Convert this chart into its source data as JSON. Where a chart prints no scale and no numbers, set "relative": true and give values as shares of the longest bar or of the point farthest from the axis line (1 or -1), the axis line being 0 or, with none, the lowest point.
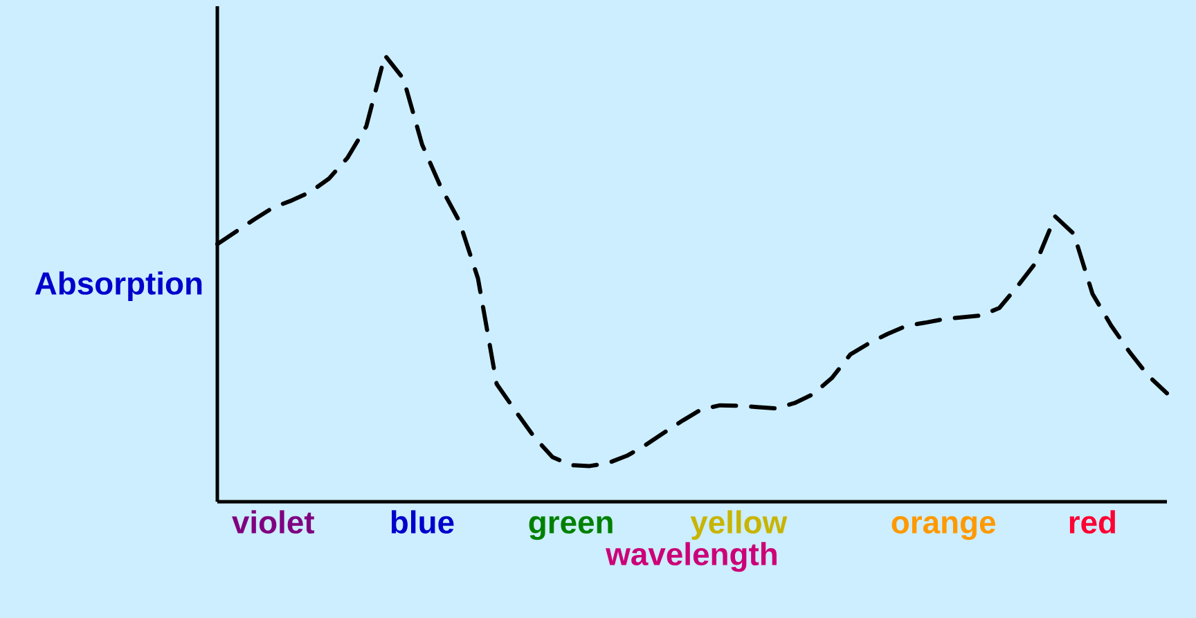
{
  "chart_data": {
    "type": "line",
    "relative": true,
    "ylabel": "Absorption",
    "xlabel": "wavelength",
    "color": "#000000",
    "line_style": "dashed",
    "marker": "none",
    "grid": false,
    "categories": [
      null,
      null,
      null,
      "violet",
      null,
      null,
      null,
      null,
      null,
      null,
      null,
      "blue",
      null,
      null,
      null,
      null,
      null,
      null,
      null,
      "green",
      null,
      null,
      null,
      null,
      null,
      null,
      null,
      null,
      "yellow",
      null,
      null,
      null,
      null,
      null,
      null,
      null,
      null,
      null,
      null,
      "orange",
      null,
      null,
      null,
      null,
      null,
      null,
      null,
      "red",
      null,
      null,
      null,
      null
    ],
    "values": [
      0.577,
      0.605,
      0.633,
      0.659,
      0.675,
      0.694,
      0.724,
      0.771,
      0.841,
      1,
      0.947,
      0.8,
      0.705,
      0.628,
      0.5,
      0.264,
      0.204,
      0.146,
      0.1,
      0.082,
      0.08,
      0.087,
      0.103,
      0.127,
      0.155,
      0.182,
      0.207,
      0.216,
      0.215,
      0.212,
      0.209,
      0.221,
      0.241,
      0.277,
      0.33,
      0.355,
      0.376,
      0.394,
      0.401,
      0.409,
      0.413,
      0.417,
      0.434,
      0.484,
      0.538,
      0.639,
      0.6,
      0.466,
      0.395,
      0.335,
      0.282,
      0.243
    ]
  }
}
